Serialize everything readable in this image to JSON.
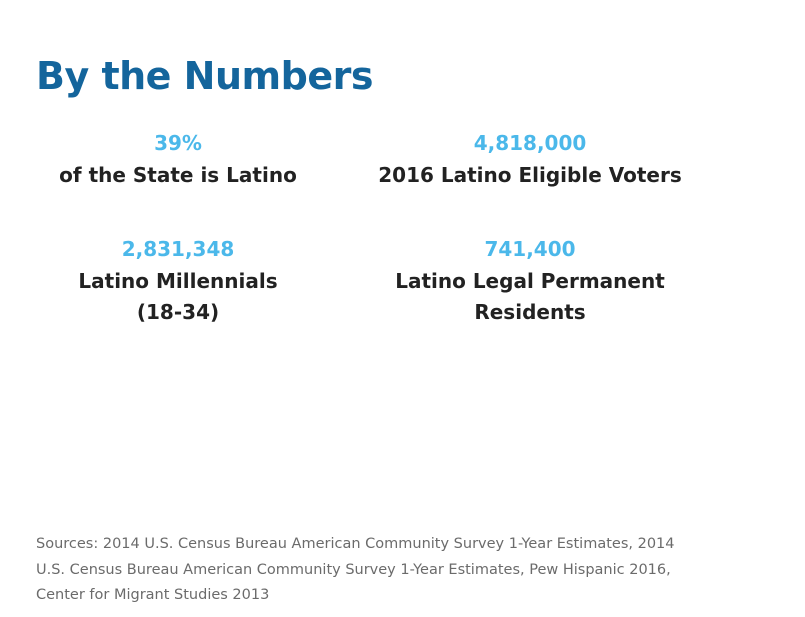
{
  "title": "By the Numbers",
  "stats": [
    {
      "value": "39%",
      "label_lines": [
        "of the State is Latino"
      ]
    },
    {
      "value": "4,818,000",
      "label_lines": [
        "2016 Latino Eligible Voters"
      ]
    },
    {
      "value": "2,831,348",
      "label_lines": [
        "Latino Millennials",
        "(18-34)"
      ]
    },
    {
      "value": "741,400",
      "label_lines": [
        "Latino Legal Permanent",
        "Residents"
      ]
    }
  ],
  "sources_lines": [
    "Sources: 2014 U.S. Census Bureau American Community Survey 1-Year Estimates, 2014",
    "U.S. Census Bureau American Community Survey 1-Year Estimates, Pew Hispanic 2016,",
    "Center for Migrant Studies 2013"
  ],
  "colors": {
    "title": "#14659c",
    "value": "#4bb8ea",
    "label": "#222222",
    "sources": "#6b6b6b"
  }
}
